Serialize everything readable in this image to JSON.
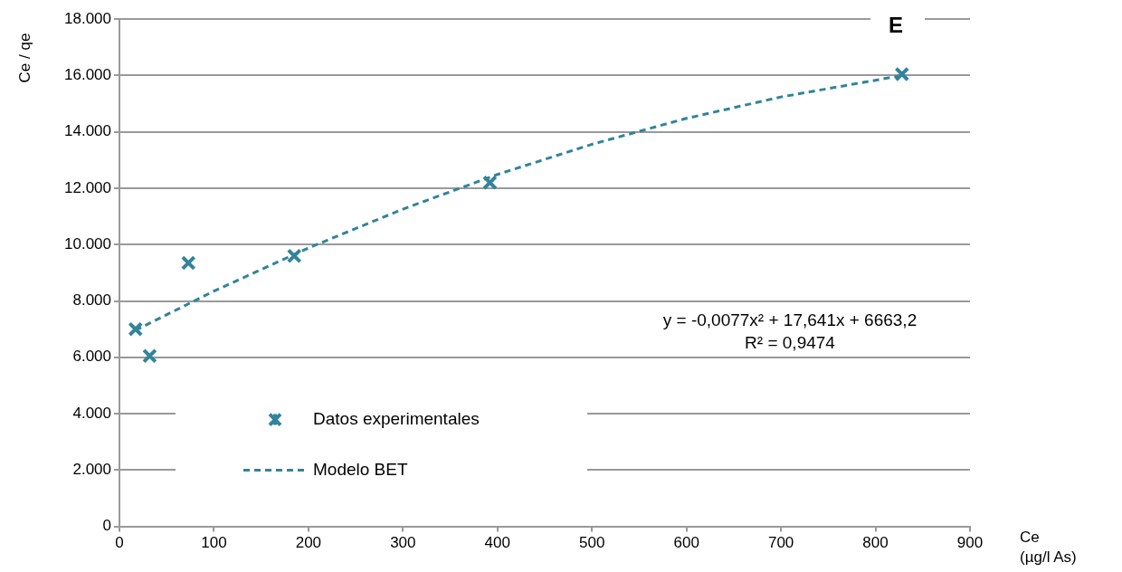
{
  "chart_data": {
    "type": "scatter",
    "title": "E",
    "xlabel": "Ce\n(µg/l As)",
    "ylabel": "Ce / qe",
    "xlim": [
      0,
      900
    ],
    "xticks": [
      0,
      100,
      200,
      300,
      400,
      500,
      600,
      700,
      800,
      900
    ],
    "ylim": [
      0,
      18000
    ],
    "yticks": [
      {
        "value": 0,
        "label": "0"
      },
      {
        "value": 2000,
        "label": "2.000"
      },
      {
        "value": 4000,
        "label": "4.000"
      },
      {
        "value": 6000,
        "label": "6.000"
      },
      {
        "value": 8000,
        "label": "8.000"
      },
      {
        "value": 10000,
        "label": "10.000"
      },
      {
        "value": 12000,
        "label": "12.000"
      },
      {
        "value": 14000,
        "label": "14.000"
      },
      {
        "value": 16000,
        "label": "16.000"
      },
      {
        "value": 18000,
        "label": "18.000"
      }
    ],
    "grid": "y",
    "legend": "bottom left",
    "annotations": [
      "y = -0,0077x² + 17,641x + 6663,2",
      "R² = 0,9474"
    ],
    "series": [
      {
        "name": "Datos experimentales",
        "type": "scatter",
        "marker": "cross",
        "color": "#31849b",
        "x": [
          17,
          32,
          73,
          185,
          392,
          828
        ],
        "values": [
          7000,
          6050,
          9350,
          9600,
          12200,
          16050
        ]
      },
      {
        "name": "Modelo BET",
        "type": "line",
        "marker": "none",
        "line_style": "dashed",
        "color": "#31849b",
        "x": [
          17,
          100,
          200,
          300,
          400,
          500,
          600,
          700,
          828
        ],
        "values": [
          6960,
          8350,
          9880,
          11260,
          12490,
          13560,
          14480,
          15240,
          16000
        ]
      }
    ]
  }
}
